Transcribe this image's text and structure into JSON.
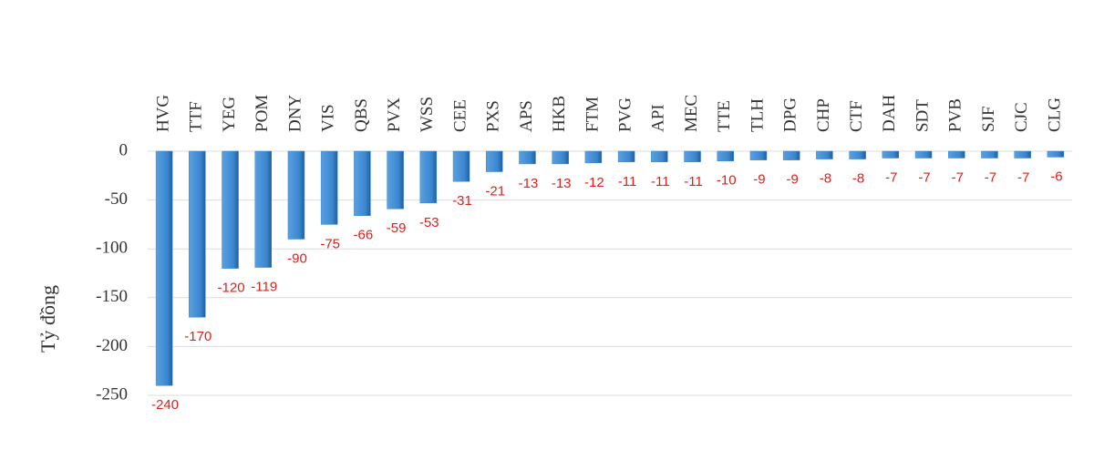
{
  "chart_data": {
    "type": "bar",
    "y_label": "Tỷ đồng",
    "categories": [
      "HVG",
      "TTF",
      "YEG",
      "POM",
      "DNY",
      "VIS",
      "QBS",
      "PVX",
      "WSS",
      "CEE",
      "PXS",
      "APS",
      "HKB",
      "FTM",
      "PVG",
      "API",
      "MEC",
      "TTE",
      "TLH",
      "DPG",
      "CHP",
      "CTF",
      "DAH",
      "SDT",
      "PVB",
      "SJF",
      "CJC",
      "CLG"
    ],
    "values": [
      -240,
      -170,
      -120,
      -119,
      -90,
      -75,
      -66,
      -59,
      -53,
      -31,
      -21,
      -13,
      -13,
      -12,
      -11,
      -11,
      -11,
      -10,
      -9,
      -9,
      -8,
      -8,
      -7,
      -7,
      -7,
      -7,
      -7,
      -6
    ],
    "color": "#3a86cf",
    "label_color": "#e0201b",
    "ylim": [
      -250,
      0
    ],
    "yticks": [
      0,
      -50,
      -100,
      -150,
      -200,
      -250
    ],
    "grid": true
  }
}
